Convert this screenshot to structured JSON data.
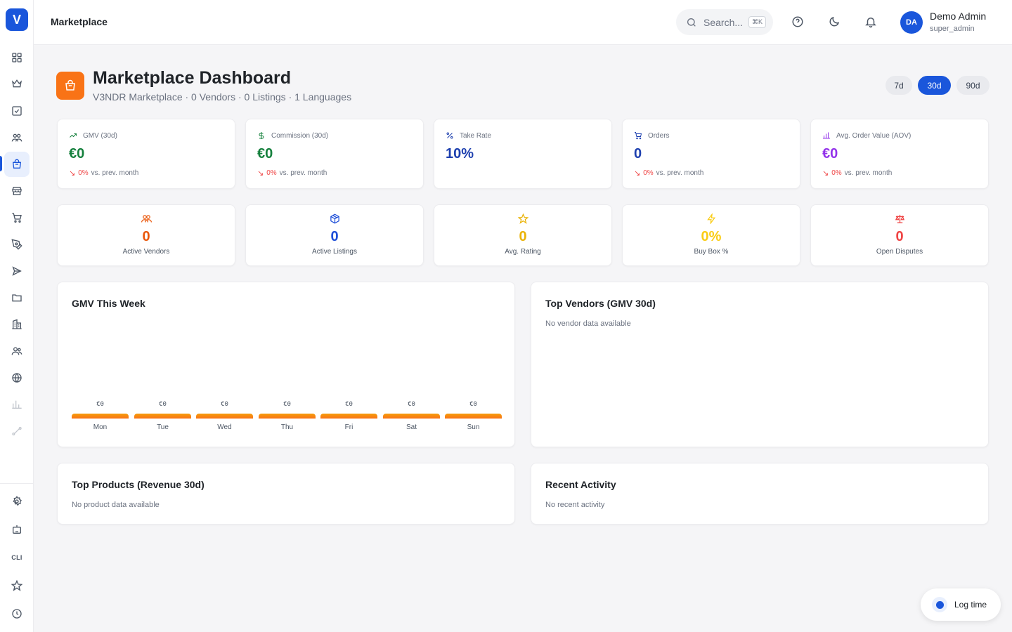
{
  "app": {
    "logo_letter": "V"
  },
  "topbar": {
    "title": "Marketplace",
    "search_placeholder": "Search...",
    "search_shortcut": "⌘K",
    "user": {
      "initials": "DA",
      "name": "Demo Admin",
      "role": "super_admin"
    }
  },
  "sidebar": {
    "items": [
      "dashboard-grid-icon",
      "crown-icon",
      "checkbox-icon",
      "users-icon",
      "shopping-bag-icon",
      "store-icon",
      "cart-icon",
      "pen-icon",
      "send-icon",
      "folder-icon",
      "building-icon",
      "team-icon",
      "globe-icon",
      "bar-chart-icon",
      "route-icon"
    ],
    "bottom_items": [
      "settings-icon",
      "bot-icon",
      "cli",
      "star-icon",
      "clock-icon"
    ],
    "cli_label": "CLI"
  },
  "header": {
    "title": "Marketplace Dashboard",
    "subtitle": "V3NDR Marketplace · 0 Vendors · 0 Listings · 1 Languages",
    "ranges": [
      "7d",
      "30d",
      "90d"
    ],
    "active_range": "30d"
  },
  "kpis": [
    {
      "label": "GMV (30d)",
      "value": "€0",
      "delta": "0%",
      "delta_text": "vs. prev. month",
      "color": "#15803d",
      "icon": "trending-up-icon"
    },
    {
      "label": "Commission (30d)",
      "value": "€0",
      "delta": "0%",
      "delta_text": "vs. prev. month",
      "color": "#15803d",
      "icon": "dollar-icon"
    },
    {
      "label": "Take Rate",
      "value": "10%",
      "color": "#1e40af",
      "icon": "percent-icon"
    },
    {
      "label": "Orders",
      "value": "0",
      "delta": "0%",
      "delta_text": "vs. prev. month",
      "color": "#1e40af",
      "icon": "cart-icon"
    },
    {
      "label": "Avg. Order Value (AOV)",
      "value": "€0",
      "delta": "0%",
      "delta_text": "vs. prev. month",
      "color": "#9333ea",
      "icon": "bar-chart-icon"
    }
  ],
  "stats": [
    {
      "label": "Active Vendors",
      "value": "0",
      "color": "#ea580c",
      "icon": "users-icon"
    },
    {
      "label": "Active Listings",
      "value": "0",
      "color": "#1d4ed8",
      "icon": "package-icon"
    },
    {
      "label": "Avg. Rating",
      "value": "0",
      "color": "#eab308",
      "icon": "star-icon"
    },
    {
      "label": "Buy Box %",
      "value": "0%",
      "color": "#facc15",
      "icon": "zap-icon"
    },
    {
      "label": "Open Disputes",
      "value": "0",
      "color": "#ef4444",
      "icon": "scale-icon"
    }
  ],
  "gmv_week": {
    "title": "GMV This Week",
    "days": [
      "Mon",
      "Tue",
      "Wed",
      "Thu",
      "Fri",
      "Sat",
      "Sun"
    ],
    "values": [
      "€0",
      "€0",
      "€0",
      "€0",
      "€0",
      "€0",
      "€0"
    ]
  },
  "top_vendors": {
    "title": "Top Vendors (GMV 30d)",
    "empty": "No vendor data available"
  },
  "top_products": {
    "title": "Top Products (Revenue 30d)",
    "empty": "No product data available"
  },
  "recent_activity": {
    "title": "Recent Activity",
    "empty": "No recent activity"
  },
  "log_time": {
    "label": "Log time"
  }
}
